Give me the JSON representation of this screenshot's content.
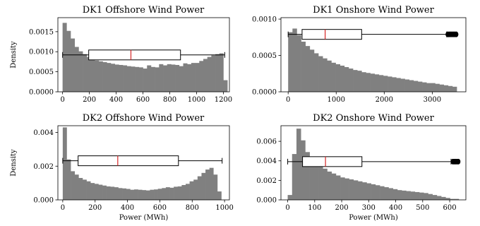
{
  "chart_data": [
    {
      "type": "histogram",
      "title": "DK1 Offshore Wind Power",
      "xlabel": "",
      "ylabel": "Density",
      "xlim": [
        -35,
        1245
      ],
      "ylim": [
        0,
        0.00185
      ],
      "xticks": [
        0,
        200,
        400,
        600,
        800,
        1000,
        1200
      ],
      "yticks": [
        0.0,
        0.0005,
        0.001,
        0.0015
      ],
      "ytick_labels": [
        "0.0000",
        "0.0005",
        "0.0010",
        "0.0015"
      ],
      "bin_start": 0,
      "bin_width": 30,
      "densities": [
        0.00172,
        0.00152,
        0.00133,
        0.00112,
        0.00101,
        0.00094,
        0.00087,
        0.00081,
        0.00078,
        0.00076,
        0.00074,
        0.00072,
        0.0007,
        0.00068,
        0.00067,
        0.00066,
        0.00064,
        0.00063,
        0.00062,
        0.00061,
        0.00058,
        0.00066,
        0.00062,
        0.00061,
        0.00069,
        0.00066,
        0.00069,
        0.00068,
        0.00067,
        0.00064,
        0.00071,
        0.00069,
        0.00072,
        0.00072,
        0.00077,
        0.00082,
        0.00087,
        0.00091,
        0.00094,
        0.00096,
        0.00029
      ],
      "box": {
        "whisker_low": 0,
        "q1": 195,
        "median": 510,
        "q3": 880,
        "whisker_high": 1210,
        "y": 0.00092,
        "outliers": []
      }
    },
    {
      "type": "histogram",
      "title": "DK1 Onshore Wind Power",
      "xlabel": "",
      "ylabel": "",
      "xlim": [
        -150,
        3700
      ],
      "ylim": [
        0,
        0.00102
      ],
      "xticks": [
        0,
        1000,
        2000,
        3000
      ],
      "yticks": [
        0.0,
        0.0005,
        0.001
      ],
      "ytick_labels": [
        "0.0000",
        "0.0005",
        "0.0010"
      ],
      "bin_start": 0,
      "bin_width": 90,
      "densities": [
        0.00082,
        0.00087,
        0.00078,
        0.00069,
        0.00063,
        0.00058,
        0.00053,
        0.00049,
        0.00046,
        0.00043,
        0.0004,
        0.00038,
        0.00036,
        0.00034,
        0.00032,
        0.0003,
        0.00029,
        0.00027,
        0.00026,
        0.00025,
        0.00024,
        0.00023,
        0.00022,
        0.00021,
        0.0002,
        0.00019,
        0.00018,
        0.00017,
        0.00016,
        0.00015,
        0.00014,
        0.00013,
        0.00012,
        0.00012,
        0.00011,
        0.0001,
        9e-05,
        8e-05,
        7e-05
      ],
      "box": {
        "whisker_low": 0,
        "q1": 290,
        "median": 770,
        "q3": 1530,
        "whisker_high": 3300,
        "y": 0.00079,
        "outliers": [
          3320,
          3350,
          3380,
          3410,
          3440,
          3470,
          3500
        ]
      }
    },
    {
      "type": "histogram",
      "title": "DK2 Offshore Wind Power",
      "xlabel": "Power (MWh)",
      "ylabel": "Density",
      "xlim": [
        -30,
        1030
      ],
      "ylim": [
        0,
        0.0044
      ],
      "xticks": [
        0,
        200,
        400,
        600,
        800,
        1000
      ],
      "yticks": [
        0.0,
        0.002,
        0.004
      ],
      "ytick_labels": [
        "0.000",
        "0.002",
        "0.004"
      ],
      "bin_start": 0,
      "bin_width": 24.5,
      "densities": [
        0.0043,
        0.0024,
        0.0017,
        0.0015,
        0.0013,
        0.0012,
        0.0011,
        0.001,
        0.00095,
        0.0009,
        0.00085,
        0.0008,
        0.00078,
        0.00075,
        0.0007,
        0.00068,
        0.00065,
        0.0006,
        0.00062,
        0.0006,
        0.00058,
        0.00056,
        0.0006,
        0.00062,
        0.00066,
        0.0007,
        0.00075,
        0.00072,
        0.00078,
        0.0008,
        0.00088,
        0.00095,
        0.0011,
        0.0012,
        0.0014,
        0.0016,
        0.0018,
        0.0019,
        0.0015,
        0.0005
      ],
      "box": {
        "whisker_low": 0,
        "q1": 95,
        "median": 340,
        "q3": 715,
        "whisker_high": 985,
        "y": 0.00232,
        "outliers": []
      }
    },
    {
      "type": "histogram",
      "title": "DK2 Onshore Wind Power",
      "xlabel": "Power (MWh)",
      "ylabel": "",
      "xlim": [
        -25,
        660
      ],
      "ylim": [
        0,
        0.0076
      ],
      "xticks": [
        0,
        100,
        200,
        300,
        400,
        500,
        600
      ],
      "yticks": [
        0.0,
        0.002,
        0.004,
        0.006
      ],
      "ytick_labels": [
        "0.000",
        "0.002",
        "0.004",
        "0.006"
      ],
      "bin_start": 0,
      "bin_width": 16.25,
      "densities": [
        0.0005,
        0.0047,
        0.0073,
        0.0061,
        0.0049,
        0.0043,
        0.0038,
        0.0035,
        0.0032,
        0.0029,
        0.0027,
        0.0025,
        0.0023,
        0.0022,
        0.0021,
        0.002,
        0.0019,
        0.0018,
        0.0017,
        0.0016,
        0.0015,
        0.0014,
        0.0013,
        0.0012,
        0.0011,
        0.001,
        0.00095,
        0.0009,
        0.00085,
        0.0008,
        0.00075,
        0.0007,
        0.0006,
        0.0005,
        0.0004,
        0.0003,
        0.0002,
        0.0001,
        0.0001
      ],
      "box": {
        "whisker_low": 0,
        "q1": 55,
        "median": 140,
        "q3": 275,
        "whisker_high": 605,
        "y": 0.00392,
        "outliers": [
          612,
          617,
          622,
          627,
          632
        ]
      }
    }
  ],
  "colors": {
    "bars": "#808080",
    "box_fill": "#ffffff",
    "box_stroke": "#000000",
    "median": "#d62728",
    "outlier": "#000000"
  }
}
